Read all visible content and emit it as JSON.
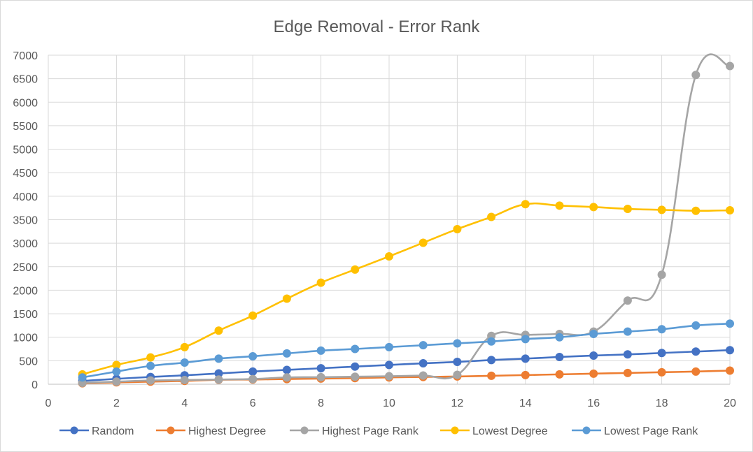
{
  "chart_data": {
    "type": "line",
    "title": "Edge Removal - Error Rank",
    "xlabel": "",
    "ylabel": "",
    "xlim": [
      0,
      20
    ],
    "ylim": [
      0,
      7000
    ],
    "x_ticks": [
      0,
      2,
      4,
      6,
      8,
      10,
      12,
      14,
      16,
      18,
      20
    ],
    "y_ticks": [
      0,
      500,
      1000,
      1500,
      2000,
      2500,
      3000,
      3500,
      4000,
      4500,
      5000,
      5500,
      6000,
      6500,
      7000
    ],
    "grid": true,
    "legend_position": "bottom",
    "smooth": true,
    "x": [
      1,
      2,
      3,
      4,
      5,
      6,
      7,
      8,
      9,
      10,
      11,
      12,
      13,
      14,
      15,
      16,
      17,
      18,
      19,
      20
    ],
    "series": [
      {
        "name": "Random",
        "color": "#4472c4",
        "values": [
          70,
          115,
          155,
          190,
          230,
          270,
          305,
          340,
          375,
          410,
          445,
          475,
          515,
          545,
          580,
          610,
          635,
          665,
          695,
          725
        ]
      },
      {
        "name": "Highest Degree",
        "color": "#ed7d31",
        "values": [
          20,
          40,
          55,
          70,
          95,
          100,
          110,
          120,
          130,
          145,
          155,
          165,
          180,
          195,
          210,
          225,
          240,
          255,
          270,
          290
        ]
      },
      {
        "name": "Highest Page Rank",
        "color": "#a5a5a5",
        "values": [
          30,
          55,
          80,
          90,
          100,
          110,
          145,
          150,
          160,
          170,
          185,
          200,
          1030,
          1050,
          1070,
          1120,
          1780,
          2330,
          6580,
          6770
        ]
      },
      {
        "name": "Lowest Degree",
        "color": "#ffc000",
        "values": [
          210,
          410,
          570,
          790,
          1140,
          1460,
          1820,
          2160,
          2440,
          2720,
          3010,
          3300,
          3560,
          3830,
          3800,
          3770,
          3730,
          3710,
          3690,
          3700
        ]
      },
      {
        "name": "Lowest Page Rank",
        "color": "#5b9bd5",
        "values": [
          145,
          270,
          390,
          460,
          545,
          595,
          655,
          715,
          750,
          790,
          830,
          870,
          910,
          960,
          1000,
          1070,
          1120,
          1170,
          1250,
          1290
        ]
      }
    ]
  }
}
